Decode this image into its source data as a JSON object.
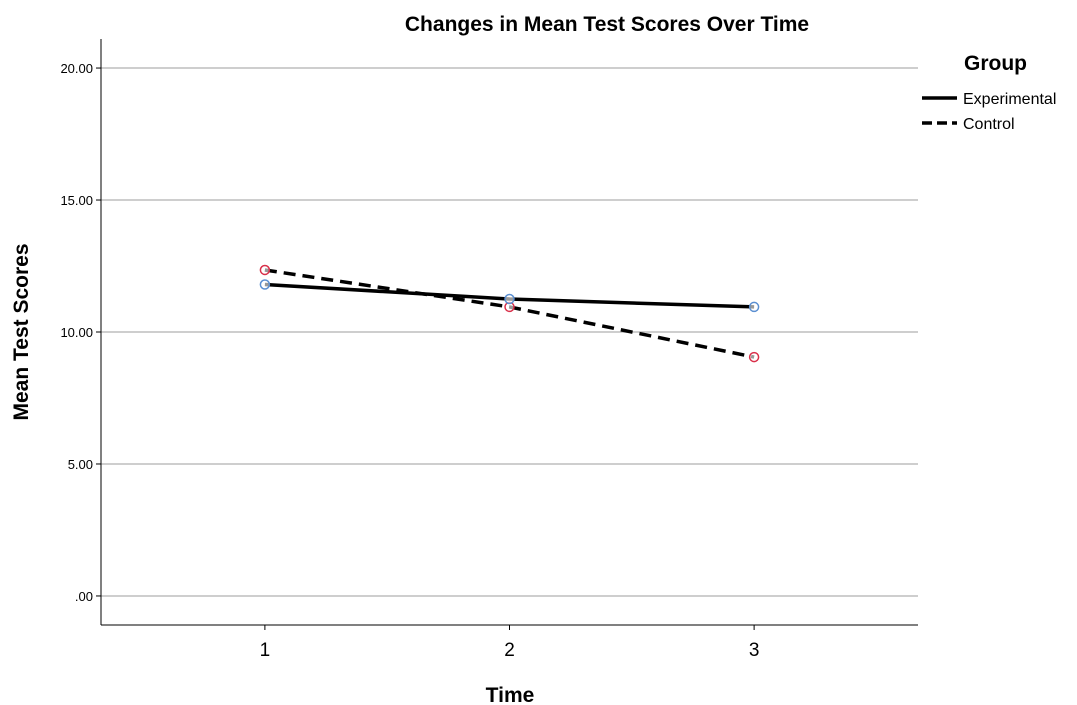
{
  "chart_data": {
    "type": "line",
    "title": "Changes in Mean Test Scores Over Time",
    "xlabel": "Time",
    "ylabel": "Mean Test Scores",
    "x": [
      1,
      2,
      3
    ],
    "x_tick_labels": [
      "1",
      "2",
      "3"
    ],
    "y_tick_labels": [
      ".00",
      "5.00",
      "10.00",
      "15.00",
      "20.00"
    ],
    "y_ticks": [
      0,
      5,
      10,
      15,
      20
    ],
    "ylim": [
      -1.1,
      21.1
    ],
    "xlim": [
      0.33,
      3.67
    ],
    "grid": "horizontal",
    "legend": {
      "title": "Group",
      "placement": "right-top"
    },
    "series": [
      {
        "name": "Experimental",
        "values": [
          11.8,
          11.25,
          10.95
        ],
        "line_style": "solid",
        "line_color": "#000000",
        "marker_color": "#5b8fd1"
      },
      {
        "name": "Control",
        "values": [
          12.35,
          10.95,
          9.05
        ],
        "line_style": "dashed",
        "line_color": "#000000",
        "marker_color": "#d9304a"
      }
    ],
    "colors": {
      "grid": "#bdbdbd",
      "axis": "#000000"
    }
  }
}
